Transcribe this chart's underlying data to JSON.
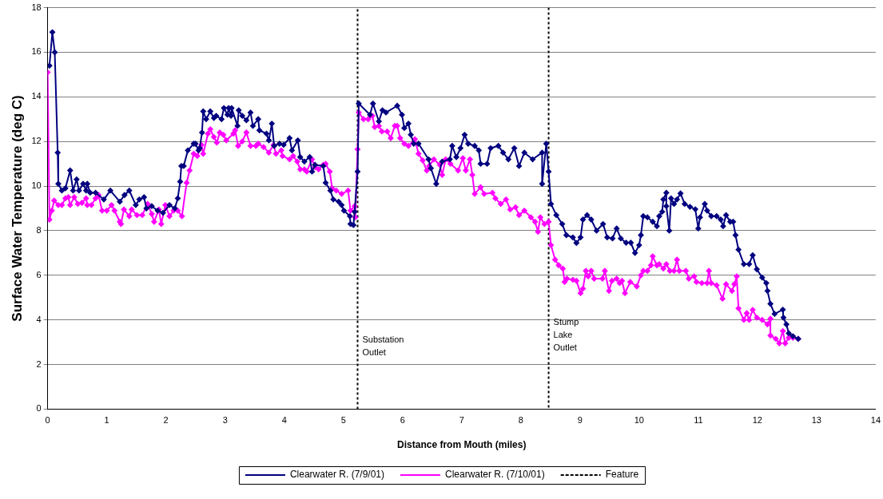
{
  "chart_data": {
    "type": "line",
    "xlabel": "Distance from Mouth (miles)",
    "ylabel": "Surface Water Temperature (deg C)",
    "xlim": [
      0,
      14
    ],
    "xticks": [
      0,
      1,
      2,
      3,
      4,
      5,
      6,
      7,
      8,
      9,
      10,
      11,
      12,
      13,
      14
    ],
    "ylim": [
      0,
      18
    ],
    "yticks": [
      0,
      2,
      4,
      6,
      8,
      10,
      12,
      14,
      16,
      18
    ],
    "grid": "y",
    "legend": "bottom",
    "marker": "diamond",
    "line_style": "solid",
    "series": [
      {
        "name": "Clearwater R. (7/9/01)",
        "color": "#000080",
        "x": [
          0.03,
          0.08,
          0.12,
          0.17,
          0.18,
          0.24,
          0.3,
          0.38,
          0.43,
          0.49,
          0.53,
          0.6,
          0.65,
          0.67,
          0.72,
          0.81,
          0.95,
          1.06,
          1.22,
          1.3,
          1.38,
          1.49,
          1.55,
          1.63,
          1.67,
          1.76,
          1.86,
          1.95,
          2.06,
          2.15,
          2.2,
          2.24,
          2.26,
          2.3,
          2.37,
          2.47,
          2.5,
          2.55,
          2.57,
          2.61,
          2.63,
          2.68,
          2.75,
          2.81,
          2.85,
          2.94,
          2.98,
          3.04,
          3.06,
          3.1,
          3.11,
          3.21,
          3.23,
          3.29,
          3.36,
          3.43,
          3.47,
          3.56,
          3.58,
          3.7,
          3.74,
          3.79,
          3.83,
          3.92,
          3.99,
          4.09,
          4.13,
          4.23,
          4.27,
          4.34,
          4.43,
          4.47,
          4.52,
          4.66,
          4.7,
          4.78,
          4.83,
          4.92,
          4.97,
          5.01,
          5.11,
          5.12,
          5.17,
          5.19,
          5.24,
          5.26,
          5.45,
          5.5,
          5.6,
          5.66,
          5.72,
          5.91,
          5.99,
          6.03,
          6.1,
          6.14,
          6.19,
          6.27,
          6.44,
          6.48,
          6.57,
          6.67,
          6.8,
          6.84,
          6.91,
          6.98,
          7.05,
          7.11,
          7.22,
          7.29,
          7.32,
          7.43,
          7.49,
          7.62,
          7.7,
          7.79,
          7.89,
          7.97,
          8.06,
          8.2,
          8.36,
          8.36,
          8.43,
          8.47,
          8.51,
          8.6,
          8.7,
          8.77,
          8.88,
          8.94,
          9.01,
          9.05,
          9.12,
          9.19,
          9.28,
          9.39,
          9.46,
          9.55,
          9.62,
          9.69,
          9.78,
          9.86,
          9.93,
          10.0,
          10.03,
          10.07,
          10.14,
          10.23,
          10.3,
          10.34,
          10.39,
          10.41,
          10.46,
          10.46,
          10.51,
          10.54,
          10.59,
          10.64,
          10.7,
          10.77,
          10.86,
          10.95,
          11.0,
          11.03,
          11.11,
          11.15,
          11.22,
          11.31,
          11.38,
          11.42,
          11.47,
          11.54,
          11.59,
          11.63,
          11.68,
          11.77,
          11.86,
          11.92,
          11.99,
          12.08,
          12.15,
          12.17,
          12.22,
          12.29,
          12.43,
          12.44,
          12.49,
          12.53,
          12.6,
          12.69
        ],
        "values": [
          15.4,
          16.9,
          16.0,
          11.5,
          10.1,
          9.8,
          9.9,
          10.7,
          9.8,
          10.3,
          9.8,
          10.1,
          9.8,
          10.1,
          9.7,
          9.7,
          9.4,
          9.8,
          9.3,
          9.6,
          9.8,
          9.15,
          9.4,
          9.5,
          9.0,
          9.1,
          8.9,
          8.8,
          9.15,
          9.0,
          9.45,
          10.2,
          10.9,
          10.9,
          11.6,
          11.9,
          11.9,
          11.6,
          11.7,
          12.4,
          13.35,
          13.0,
          13.35,
          13.05,
          13.15,
          13.0,
          13.5,
          13.2,
          13.5,
          13.15,
          13.5,
          12.7,
          13.4,
          13.15,
          12.95,
          13.3,
          12.7,
          13.0,
          12.5,
          12.35,
          12.05,
          12.8,
          11.8,
          11.9,
          11.85,
          12.15,
          11.6,
          12.05,
          11.3,
          11.1,
          11.3,
          10.65,
          10.95,
          10.9,
          10.15,
          9.8,
          9.4,
          9.3,
          9.15,
          8.9,
          8.65,
          8.3,
          8.25,
          8.85,
          10.65,
          13.7,
          13.2,
          13.7,
          12.9,
          13.4,
          13.3,
          13.6,
          13.2,
          12.6,
          12.8,
          12.3,
          11.9,
          11.9,
          11.2,
          10.8,
          10.1,
          11.1,
          11.2,
          11.8,
          11.3,
          11.7,
          12.3,
          11.9,
          11.8,
          11.6,
          11.0,
          11.0,
          11.7,
          11.8,
          11.5,
          11.2,
          11.7,
          10.9,
          11.5,
          11.2,
          11.5,
          10.1,
          11.9,
          10.65,
          9.2,
          8.7,
          8.3,
          7.8,
          7.7,
          7.45,
          7.7,
          8.5,
          8.7,
          8.5,
          8.0,
          8.3,
          7.7,
          7.65,
          8.1,
          7.65,
          7.46,
          7.46,
          7.0,
          7.35,
          7.8,
          8.65,
          8.6,
          8.4,
          8.2,
          8.65,
          8.85,
          9.4,
          9.7,
          9.1,
          8.0,
          9.45,
          9.2,
          9.4,
          9.67,
          9.2,
          9.07,
          8.96,
          8.1,
          8.6,
          9.2,
          8.9,
          8.65,
          8.65,
          8.5,
          8.2,
          8.7,
          8.4,
          8.4,
          7.8,
          7.15,
          6.5,
          6.5,
          6.9,
          6.27,
          5.9,
          5.65,
          5.3,
          4.72,
          4.27,
          4.46,
          4.1,
          3.8,
          3.4,
          3.27,
          3.15
        ]
      },
      {
        "name": "Clearwater R. (7/10/01)",
        "color": "#ff00ff",
        "x": [
          0.0,
          0.03,
          0.07,
          0.11,
          0.18,
          0.24,
          0.3,
          0.35,
          0.38,
          0.45,
          0.51,
          0.58,
          0.65,
          0.67,
          0.74,
          0.81,
          0.86,
          0.92,
          1.0,
          1.08,
          1.13,
          1.22,
          1.24,
          1.29,
          1.38,
          1.42,
          1.51,
          1.6,
          1.69,
          1.76,
          1.8,
          1.88,
          1.92,
          1.99,
          2.06,
          2.13,
          2.2,
          2.27,
          2.35,
          2.4,
          2.47,
          2.53,
          2.6,
          2.63,
          2.71,
          2.75,
          2.81,
          2.86,
          2.91,
          2.97,
          3.02,
          3.14,
          3.17,
          3.22,
          3.29,
          3.36,
          3.43,
          3.52,
          3.56,
          3.65,
          3.74,
          3.82,
          3.86,
          3.95,
          3.97,
          4.09,
          4.15,
          4.22,
          4.27,
          4.34,
          4.38,
          4.47,
          4.52,
          4.58,
          4.66,
          4.7,
          4.77,
          4.81,
          4.88,
          4.97,
          5.08,
          5.12,
          5.19,
          5.2,
          5.24,
          5.26,
          5.34,
          5.42,
          5.49,
          5.53,
          5.6,
          5.65,
          5.74,
          5.8,
          5.87,
          5.91,
          5.96,
          6.03,
          6.1,
          6.21,
          6.27,
          6.34,
          6.41,
          6.45,
          6.53,
          6.63,
          6.67,
          6.73,
          6.81,
          6.94,
          7.02,
          7.07,
          7.14,
          7.18,
          7.22,
          7.32,
          7.38,
          7.52,
          7.57,
          7.66,
          7.75,
          7.82,
          7.91,
          7.97,
          8.06,
          8.17,
          8.24,
          8.29,
          8.33,
          8.4,
          8.47,
          8.51,
          8.58,
          8.64,
          8.71,
          8.74,
          8.78,
          8.88,
          8.94,
          9.01,
          9.05,
          9.1,
          9.14,
          9.19,
          9.24,
          9.38,
          9.42,
          9.49,
          9.54,
          9.62,
          9.67,
          9.71,
          9.76,
          9.85,
          9.96,
          10.03,
          10.07,
          10.14,
          10.2,
          10.23,
          10.3,
          10.34,
          10.41,
          10.46,
          10.52,
          10.59,
          10.64,
          10.68,
          10.79,
          10.84,
          10.93,
          10.97,
          11.06,
          11.15,
          11.18,
          11.22,
          11.31,
          11.41,
          11.47,
          11.57,
          11.61,
          11.65,
          11.68,
          11.77,
          11.82,
          11.86,
          11.92,
          11.99,
          12.08,
          12.17,
          12.22,
          12.22,
          12.31,
          12.37,
          12.43,
          12.47,
          12.53,
          12.6,
          12.69
        ],
        "values": [
          15.1,
          8.5,
          8.9,
          9.35,
          9.15,
          9.15,
          9.45,
          9.5,
          9.15,
          9.5,
          9.2,
          9.25,
          9.45,
          9.15,
          9.15,
          9.45,
          9.6,
          8.9,
          8.9,
          9.15,
          8.9,
          8.4,
          8.3,
          8.95,
          8.65,
          8.95,
          8.7,
          8.7,
          9.2,
          8.75,
          8.4,
          8.95,
          8.3,
          9.15,
          8.65,
          8.9,
          8.9,
          8.65,
          10.15,
          10.7,
          11.45,
          11.35,
          11.85,
          11.45,
          12.35,
          12.55,
          12.2,
          11.95,
          12.4,
          12.3,
          12.05,
          12.35,
          12.5,
          11.8,
          12.0,
          12.4,
          11.8,
          11.8,
          11.9,
          11.75,
          11.5,
          11.85,
          11.45,
          11.6,
          11.35,
          11.2,
          11.35,
          11.1,
          10.75,
          10.75,
          10.65,
          11.2,
          10.85,
          10.75,
          10.95,
          11.0,
          10.65,
          9.9,
          9.8,
          9.65,
          9.8,
          8.9,
          9.1,
          8.6,
          11.65,
          13.3,
          13.0,
          13.0,
          13.15,
          12.65,
          12.7,
          12.45,
          12.45,
          12.15,
          12.7,
          12.7,
          12.15,
          11.9,
          11.8,
          12.1,
          11.45,
          11.15,
          10.7,
          10.9,
          11.2,
          10.95,
          10.5,
          11.2,
          11.0,
          10.7,
          11.25,
          10.7,
          11.2,
          10.5,
          9.65,
          9.95,
          9.65,
          9.7,
          9.45,
          9.2,
          9.4,
          8.95,
          9.05,
          8.7,
          8.9,
          8.6,
          8.4,
          7.95,
          8.6,
          8.3,
          8.4,
          7.35,
          6.7,
          6.45,
          6.3,
          5.7,
          5.85,
          5.8,
          5.75,
          5.2,
          5.4,
          6.2,
          5.95,
          6.2,
          5.85,
          5.85,
          6.2,
          5.3,
          5.75,
          5.85,
          5.65,
          5.75,
          5.2,
          5.7,
          5.5,
          6.0,
          6.2,
          6.2,
          6.45,
          6.85,
          6.45,
          6.5,
          6.3,
          6.5,
          6.2,
          6.2,
          6.7,
          6.2,
          6.2,
          5.85,
          5.95,
          5.7,
          5.65,
          5.65,
          6.2,
          5.65,
          5.55,
          4.95,
          5.6,
          5.3,
          5.6,
          5.95,
          4.52,
          4.0,
          4.3,
          4.0,
          4.45,
          4.1,
          4.0,
          3.8,
          4.05,
          3.3,
          3.15,
          2.95,
          3.5,
          2.95,
          3.2,
          3.2,
          3.15
        ]
      },
      {
        "name": "Feature",
        "type": "line",
        "color": "#000000",
        "marker": "none",
        "line_style": "dotted",
        "x": [
          5.24,
          5.24,
          null,
          8.47,
          8.47
        ],
        "values": [
          0,
          18,
          null,
          18,
          0
        ]
      }
    ],
    "annotations": [
      {
        "text": "Substation Outlet",
        "x": 5.24,
        "y": 2.8
      },
      {
        "text": "Stump Lake Outlet",
        "x": 8.47,
        "y": 3.3
      }
    ]
  }
}
